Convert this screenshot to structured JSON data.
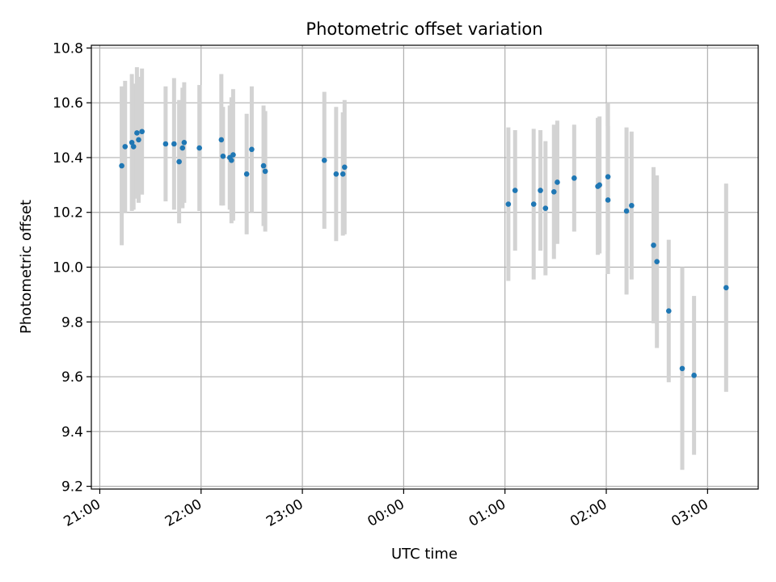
{
  "chart_data": {
    "type": "scatter",
    "title": "Photometric offset variation",
    "xlabel": "UTC time",
    "ylabel": "Photometric offset",
    "x_unit": "UTC time (HH:MM)",
    "xlim": [
      "20:55",
      "03:30"
    ],
    "ylim": [
      9.19,
      10.81
    ],
    "xticks": [
      "21:00",
      "22:00",
      "23:00",
      "00:00",
      "01:00",
      "02:00",
      "03:00"
    ],
    "yticks": [
      "9.2",
      "9.4",
      "9.6",
      "9.8",
      "10.0",
      "10.2",
      "10.4",
      "10.6",
      "10.8"
    ],
    "grid": true,
    "colors": {
      "points": "#1f77b4",
      "errorbars": "#d3d3d3",
      "grid": "#b0b0b0"
    },
    "series": [
      {
        "x": [
          "21:13",
          "21:15",
          "21:19",
          "21:20",
          "21:22",
          "21:23",
          "21:25",
          "21:39",
          "21:44",
          "21:47",
          "21:49",
          "21:50",
          "21:59",
          "22:12",
          "22:13",
          "22:17",
          "22:18",
          "22:19",
          "22:27",
          "22:30",
          "22:37",
          "22:38",
          "23:13",
          "23:20",
          "23:24",
          "23:25",
          "01:02",
          "01:06",
          "01:17",
          "01:21",
          "01:24",
          "01:29",
          "01:31",
          "01:41",
          "01:55",
          "01:56",
          "02:01",
          "02:01",
          "02:12",
          "02:15",
          "02:28",
          "02:30",
          "02:37",
          "02:45",
          "02:52",
          "03:11"
        ],
        "y": [
          10.37,
          10.44,
          10.455,
          10.44,
          10.49,
          10.465,
          10.495,
          10.45,
          10.45,
          10.385,
          10.435,
          10.455,
          10.435,
          10.465,
          10.405,
          10.4,
          10.39,
          10.41,
          10.34,
          10.43,
          10.37,
          10.35,
          10.39,
          10.34,
          10.34,
          10.365,
          10.23,
          10.28,
          10.23,
          10.28,
          10.215,
          10.275,
          10.31,
          10.325,
          10.295,
          10.3,
          10.33,
          10.245,
          10.205,
          10.225,
          10.08,
          10.02,
          9.84,
          9.63,
          9.605,
          9.925
        ],
        "yerr": [
          0.29,
          0.24,
          0.25,
          0.23,
          0.24,
          0.23,
          0.23,
          0.21,
          0.24,
          0.225,
          0.22,
          0.22,
          0.23,
          0.24,
          0.18,
          0.19,
          0.23,
          0.24,
          0.22,
          0.23,
          0.22,
          0.22,
          0.25,
          0.245,
          0.225,
          0.245,
          0.28,
          0.22,
          0.275,
          0.22,
          0.245,
          0.245,
          0.225,
          0.195,
          0.25,
          0.25,
          0.27,
          0.27,
          0.305,
          0.27,
          0.285,
          0.315,
          0.26,
          0.37,
          0.29,
          0.38
        ]
      }
    ]
  }
}
